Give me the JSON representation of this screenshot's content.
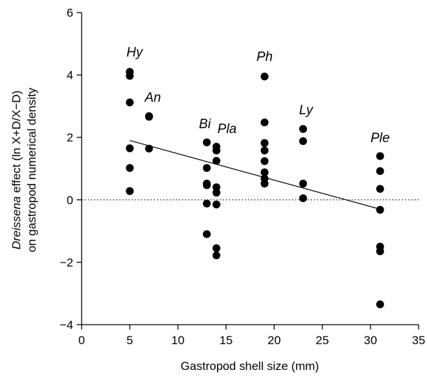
{
  "chart_data": {
    "type": "scatter",
    "xlabel": "Gastropod shell size (mm)",
    "ylabel_line1_italic": "Dreissena",
    "ylabel_line1_rest": " effect (ln X+D/X−D)",
    "ylabel_line2": "on gastropod numerical density",
    "xlim": [
      0,
      35
    ],
    "ylim": [
      -4,
      6
    ],
    "xticks": [
      0,
      5,
      10,
      15,
      20,
      25,
      30,
      35
    ],
    "yticks": [
      -4,
      -2,
      0,
      2,
      4,
      6
    ],
    "grid": false,
    "reference_line": {
      "y": 0,
      "style": "dotted"
    },
    "trend_line": {
      "x": [
        5,
        31
      ],
      "y": [
        1.9,
        -0.3
      ]
    },
    "points": [
      {
        "x": 5,
        "y": 4.1
      },
      {
        "x": 5,
        "y": 3.97
      },
      {
        "x": 5,
        "y": 3.12
      },
      {
        "x": 5,
        "y": 1.65
      },
      {
        "x": 5,
        "y": 1.02
      },
      {
        "x": 5,
        "y": 0.28
      },
      {
        "x": 7,
        "y": 2.68
      },
      {
        "x": 7,
        "y": 2.66
      },
      {
        "x": 7,
        "y": 1.64
      },
      {
        "x": 13,
        "y": 1.84
      },
      {
        "x": 13,
        "y": 1.02
      },
      {
        "x": 13,
        "y": 0.52
      },
      {
        "x": 13,
        "y": 0.47
      },
      {
        "x": 13,
        "y": -0.12
      },
      {
        "x": 13,
        "y": -1.1
      },
      {
        "x": 14,
        "y": 1.7
      },
      {
        "x": 14,
        "y": 1.58
      },
      {
        "x": 14,
        "y": 1.25
      },
      {
        "x": 14,
        "y": 0.4
      },
      {
        "x": 14,
        "y": 0.23
      },
      {
        "x": 14,
        "y": -0.15
      },
      {
        "x": 14,
        "y": -1.55
      },
      {
        "x": 14,
        "y": -1.78
      },
      {
        "x": 19,
        "y": 3.95
      },
      {
        "x": 19,
        "y": 2.48
      },
      {
        "x": 19,
        "y": 1.82
      },
      {
        "x": 19,
        "y": 1.58
      },
      {
        "x": 19,
        "y": 1.24
      },
      {
        "x": 19,
        "y": 0.88
      },
      {
        "x": 19,
        "y": 0.68
      },
      {
        "x": 19,
        "y": 0.52
      },
      {
        "x": 23,
        "y": 2.27
      },
      {
        "x": 23,
        "y": 1.88
      },
      {
        "x": 23,
        "y": 0.52
      },
      {
        "x": 23,
        "y": 0.05
      },
      {
        "x": 31,
        "y": 1.4
      },
      {
        "x": 31,
        "y": 0.92
      },
      {
        "x": 31,
        "y": 0.35
      },
      {
        "x": 31,
        "y": -0.32
      },
      {
        "x": 31,
        "y": -1.5
      },
      {
        "x": 31,
        "y": -1.65
      },
      {
        "x": 31,
        "y": -3.35
      }
    ],
    "annotations": [
      {
        "text": "Hy",
        "x": 5.5,
        "y": 4.75
      },
      {
        "text": "An",
        "x": 7.4,
        "y": 3.3
      },
      {
        "text": "Bi",
        "x": 12.8,
        "y": 2.45
      },
      {
        "text": "Pla",
        "x": 15.1,
        "y": 2.3
      },
      {
        "text": "Ph",
        "x": 19,
        "y": 4.6
      },
      {
        "text": "Ly",
        "x": 23.3,
        "y": 2.9
      },
      {
        "text": "Ple",
        "x": 31,
        "y": 2.0
      }
    ]
  }
}
